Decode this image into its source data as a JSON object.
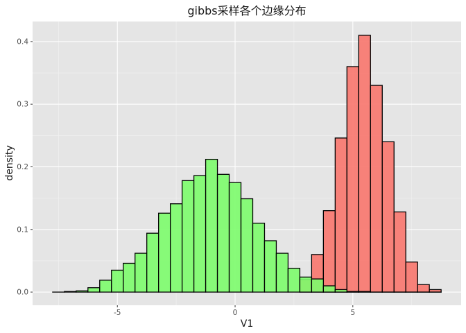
{
  "chart_data": {
    "type": "histogram",
    "title": "gibbs采样各个边缘分布",
    "xlabel": "V1",
    "ylabel": "density",
    "xlim": [
      -8.6,
      9.6
    ],
    "ylim": [
      -0.021,
      0.432
    ],
    "x_ticks": [
      -5,
      0,
      5
    ],
    "x_tick_labels": [
      "-5",
      "0",
      "5"
    ],
    "y_ticks": [
      0.0,
      0.1,
      0.2,
      0.3,
      0.4
    ],
    "y_tick_labels": [
      "0.0",
      "0.1",
      "0.2",
      "0.3",
      "0.4"
    ],
    "bin_width": 0.5,
    "grid": true,
    "background": "#E5E5E5",
    "series": [
      {
        "color": "#F8766D",
        "opacity": 0.9,
        "bin_starts": [
          2.75,
          3.25,
          3.75,
          4.25,
          4.75,
          5.25,
          5.75,
          6.25,
          6.75,
          7.25,
          7.75,
          8.25
        ],
        "density": [
          0.02,
          0.06,
          0.13,
          0.246,
          0.36,
          0.41,
          0.33,
          0.24,
          0.128,
          0.048,
          0.012,
          0.004
        ]
      },
      {
        "color": "#7CFC6C",
        "opacity": 0.9,
        "bin_starts": [
          -7.75,
          -7.25,
          -6.75,
          -6.25,
          -5.75,
          -5.25,
          -4.75,
          -4.25,
          -3.75,
          -3.25,
          -2.75,
          -2.25,
          -1.75,
          -1.25,
          -0.75,
          -0.25,
          0.25,
          0.75,
          1.25,
          1.75,
          2.25,
          2.75,
          3.25,
          3.75,
          4.25,
          4.75,
          5.25,
          5.75,
          6.25,
          6.75,
          7.25,
          7.75,
          8.25
        ],
        "density": [
          0.0,
          0.001,
          0.002,
          0.007,
          0.019,
          0.035,
          0.046,
          0.062,
          0.094,
          0.126,
          0.141,
          0.178,
          0.186,
          0.212,
          0.188,
          0.175,
          0.149,
          0.11,
          0.082,
          0.062,
          0.038,
          0.024,
          0.021,
          0.01,
          0.004,
          0.001,
          0.001,
          0.0,
          0.0,
          0.0,
          0.0,
          0.0,
          0.0
        ]
      }
    ]
  }
}
